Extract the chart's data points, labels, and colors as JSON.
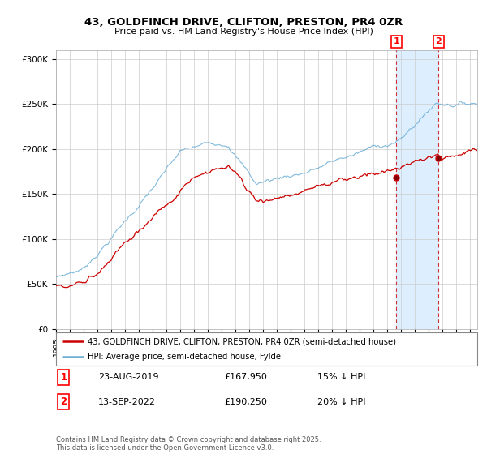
{
  "title1": "43, GOLDFINCH DRIVE, CLIFTON, PRESTON, PR4 0ZR",
  "title2": "Price paid vs. HM Land Registry's House Price Index (HPI)",
  "legend_line1": "43, GOLDFINCH DRIVE, CLIFTON, PRESTON, PR4 0ZR (semi-detached house)",
  "legend_line2": "HPI: Average price, semi-detached house, Fylde",
  "annotation1_date": "23-AUG-2019",
  "annotation1_price": "£167,950",
  "annotation1_hpi": "15% ↓ HPI",
  "annotation2_date": "13-SEP-2022",
  "annotation2_price": "£190,250",
  "annotation2_hpi": "20% ↓ HPI",
  "footer": "Contains HM Land Registry data © Crown copyright and database right 2025.\nThis data is licensed under the Open Government Licence v3.0.",
  "sale1_year": 2019.646,
  "sale1_price": 167950,
  "sale2_year": 2022.704,
  "sale2_price": 190250,
  "hpi_color": "#6baed6",
  "price_color": "#cc0000",
  "shade_color": "#ddeeff",
  "vline_color": "#cc0000",
  "background_color": "#ffffff",
  "plot_bg_color": "#ffffff",
  "ylim": [
    0,
    310000
  ],
  "xlim_start": 1995,
  "xlim_end": 2025.5
}
